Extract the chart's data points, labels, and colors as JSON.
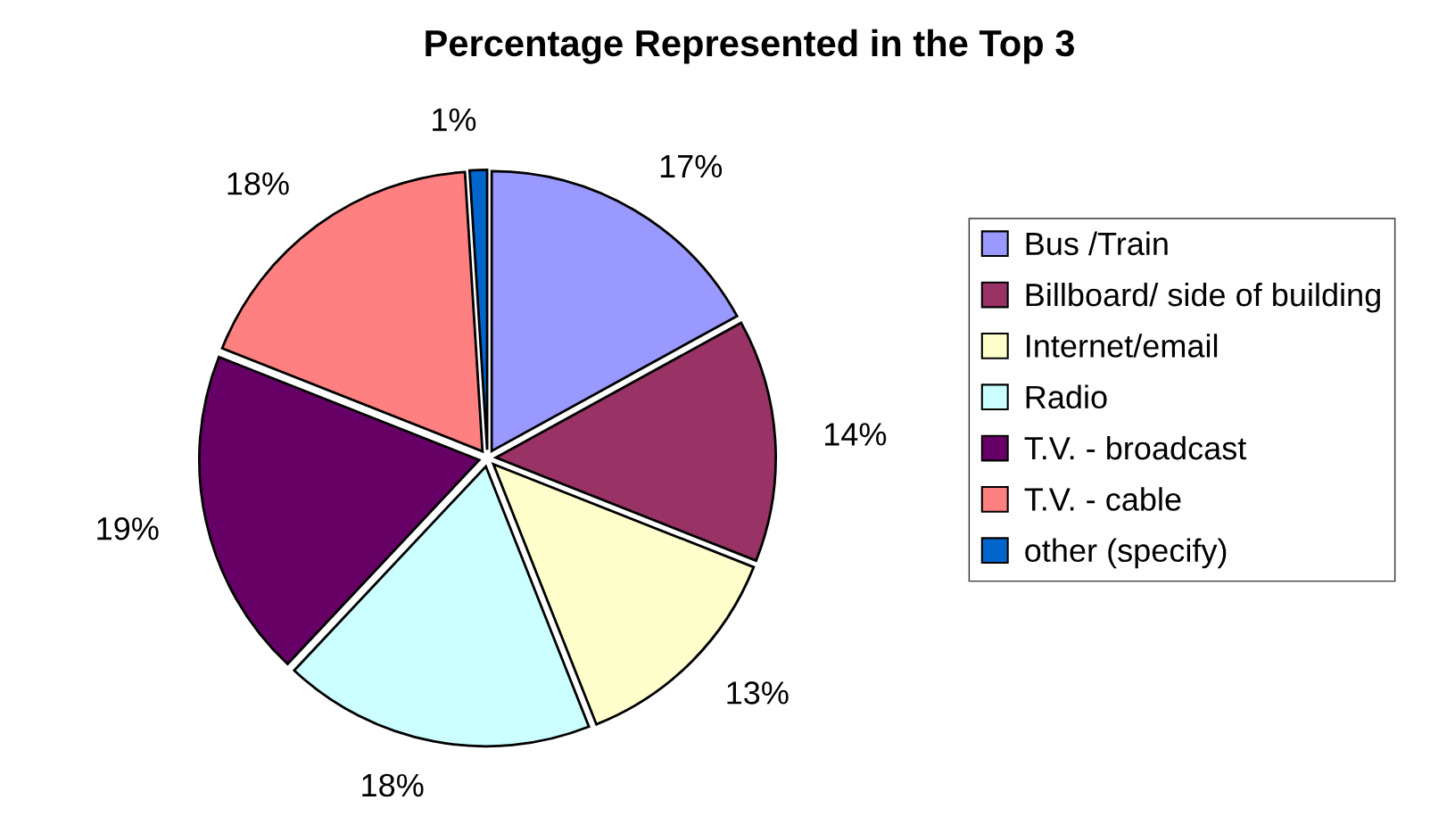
{
  "chart_data": {
    "type": "pie",
    "title": "Percentage Represented in the Top 3",
    "categories": [
      "Bus /Train",
      "Billboard/ side of building",
      "Internet/email",
      "Radio",
      "T.V. - broadcast",
      "T.V. - cable",
      "other (specify)"
    ],
    "values": [
      17,
      14,
      13,
      18,
      19,
      18,
      1
    ],
    "value_labels": [
      "17%",
      "14%",
      "13%",
      "18%",
      "19%",
      "18%",
      "1%"
    ],
    "colors": [
      "#9999ff",
      "#993366",
      "#ffffcc",
      "#ccffff",
      "#660066",
      "#ff8080",
      "#0066cc"
    ],
    "legend": "right"
  }
}
